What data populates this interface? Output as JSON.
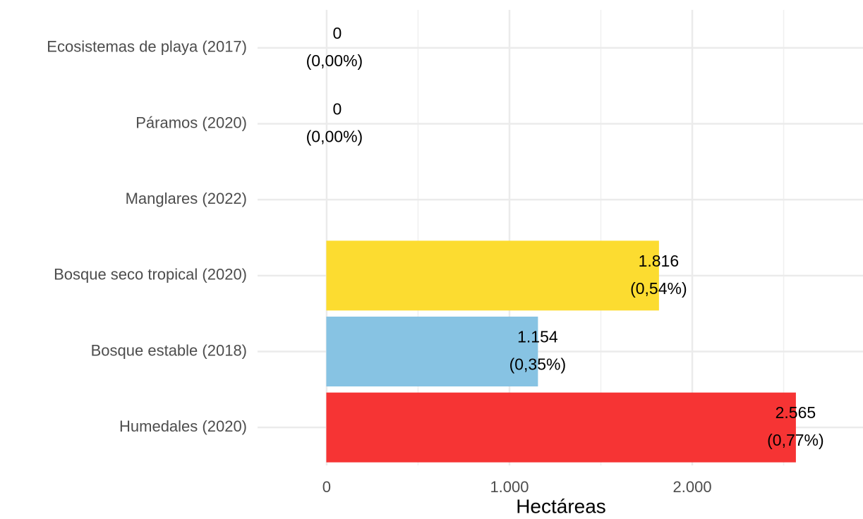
{
  "chart_data": {
    "type": "barh",
    "categories": [
      "Ecosistemas de playa (2017)",
      "Páramos (2020)",
      "Manglares (2022)",
      "Bosque seco tropical (2020)",
      "Bosque estable (2018)",
      "Humedales (2020)"
    ],
    "values": [
      0,
      0,
      null,
      1816,
      1154,
      2565
    ],
    "value_labels": [
      "0",
      "0",
      null,
      "1.816",
      "1.154",
      "2.565"
    ],
    "percent_labels": [
      "(0,00%)",
      "(0,00%)",
      null,
      "(0,54%)",
      "(0,35%)",
      "(0,77%)"
    ],
    "colors": [
      "#8ccf6a",
      "#f2b6cc",
      "#cccccc",
      "#fcdc30",
      "#87c3e3",
      "#f63434"
    ],
    "xlabel": "Hectáreas",
    "xlim": [
      -378,
      2934
    ],
    "xticks": [
      0,
      {
        "value": 1000,
        "label": "1.000"
      },
      {
        "value": 2000,
        "label": "2.000"
      }
    ],
    "xminorticks": [
      500,
      1500,
      2500
    ],
    "grid": true
  }
}
